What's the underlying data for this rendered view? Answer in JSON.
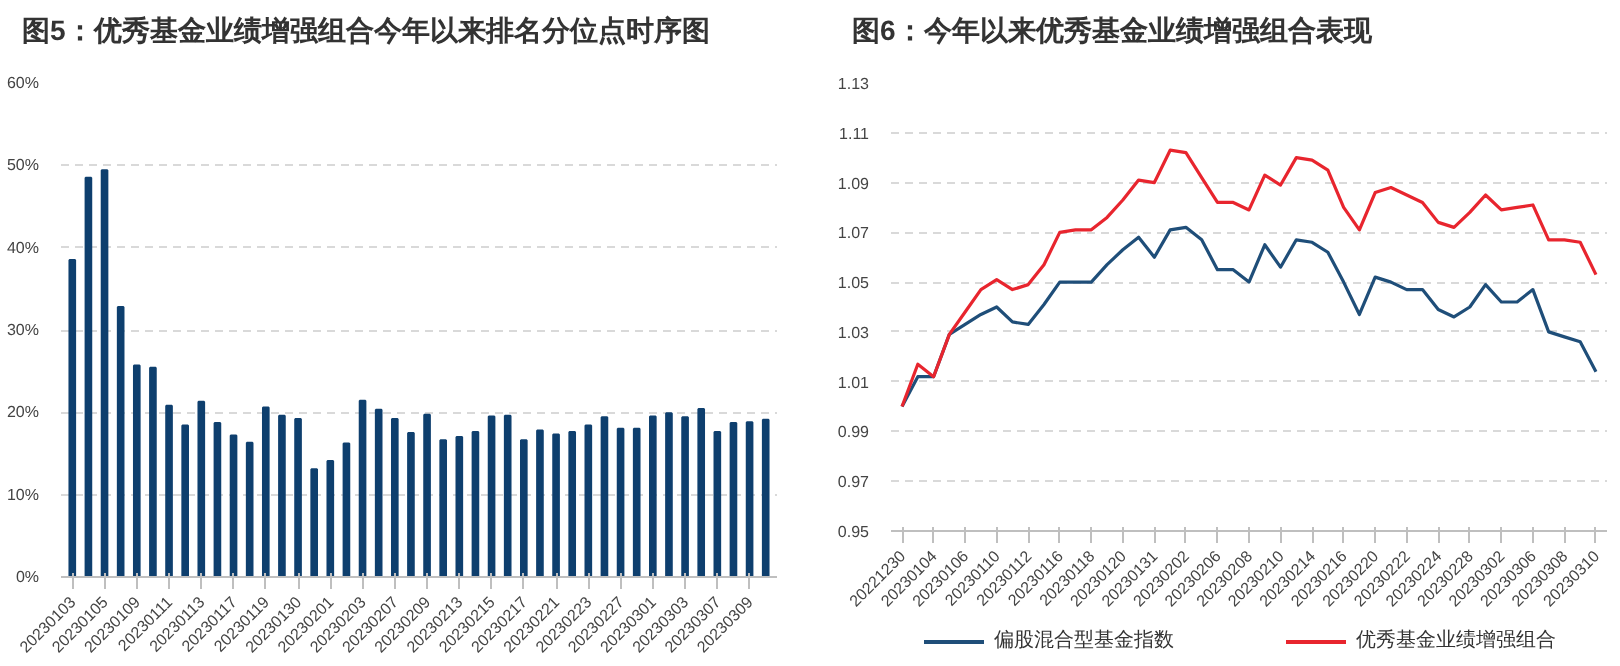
{
  "chart_data": [
    {
      "type": "bar",
      "title": "图5：优秀基金业绩增强组合今年以来排名分位点时序图",
      "categories": [
        "20230103",
        null,
        "20230105",
        null,
        "20230109",
        null,
        "20230111",
        null,
        "20230113",
        null,
        "20230117",
        null,
        "20230119",
        null,
        "20230130",
        null,
        "20230201",
        null,
        "20230203",
        null,
        "20230207",
        null,
        "20230209",
        null,
        "20230213",
        null,
        "20230215",
        null,
        "20230217",
        null,
        "20230221",
        null,
        "20230223",
        null,
        "20230227",
        null,
        "20230301",
        null,
        "20230303",
        null,
        "20230307",
        null,
        "20230309",
        null
      ],
      "values": [
        38.5,
        48.5,
        49.4,
        32.8,
        25.7,
        25.4,
        20.8,
        18.4,
        21.3,
        18.7,
        17.2,
        16.3,
        20.6,
        19.6,
        19.2,
        13.1,
        14.1,
        16.2,
        21.4,
        20.3,
        19.2,
        17.5,
        19.7,
        16.6,
        17.0,
        17.6,
        19.5,
        19.6,
        16.6,
        17.8,
        17.3,
        17.6,
        18.4,
        19.4,
        18.0,
        18.0,
        19.5,
        19.9,
        19.4,
        20.4,
        17.6,
        18.7,
        18.8,
        19.1
      ],
      "color": "#0e3f6e",
      "ylim": [
        0,
        60
      ],
      "yticks": [
        {
          "value": 0,
          "label": "0%"
        },
        {
          "value": 10,
          "label": "10%"
        },
        {
          "value": 20,
          "label": "20%"
        },
        {
          "value": 30,
          "label": "30%"
        },
        {
          "value": 40,
          "label": "40%"
        },
        {
          "value": 50,
          "label": "50%"
        },
        {
          "value": 60,
          "label": "60%"
        }
      ],
      "grid": "y"
    },
    {
      "type": "line",
      "title": "图6：今年以来优秀基金业绩增强组合表现",
      "categories": [
        "20221230",
        null,
        "20230104",
        null,
        "20230106",
        null,
        "20230110",
        null,
        "20230112",
        null,
        "20230116",
        null,
        "20230118",
        null,
        "20230120",
        null,
        "20230131",
        null,
        "20230202",
        null,
        "20230206",
        null,
        "20230208",
        null,
        "20230210",
        null,
        "20230214",
        null,
        "20230216",
        null,
        "20230220",
        null,
        "20230222",
        null,
        "20230224",
        null,
        "20230228",
        null,
        "20230302",
        null,
        "20230306",
        null,
        "20230308",
        null,
        "20230310"
      ],
      "series": [
        {
          "name": "偏股混合型基金指数",
          "color": "#1f4e79",
          "values": [
            1.0,
            1.012,
            1.012,
            1.029,
            1.033,
            1.037,
            1.04,
            1.034,
            1.033,
            1.041,
            1.05,
            1.05,
            1.05,
            1.057,
            1.063,
            1.068,
            1.06,
            1.071,
            1.072,
            1.067,
            1.055,
            1.055,
            1.05,
            1.065,
            1.056,
            1.067,
            1.066,
            1.062,
            1.05,
            1.037,
            1.052,
            1.05,
            1.047,
            1.047,
            1.039,
            1.036,
            1.04,
            1.049,
            1.042,
            1.042,
            1.047,
            1.03,
            1.028,
            1.026,
            1.014
          ]
        },
        {
          "name": "优秀基金业绩增强组合",
          "color": "#e8252e",
          "values": [
            1.0,
            1.017,
            1.012,
            1.029,
            1.038,
            1.047,
            1.051,
            1.047,
            1.049,
            1.057,
            1.07,
            1.071,
            1.071,
            1.076,
            1.083,
            1.091,
            1.09,
            1.103,
            1.102,
            1.092,
            1.082,
            1.082,
            1.079,
            1.093,
            1.089,
            1.1,
            1.099,
            1.095,
            1.08,
            1.071,
            1.086,
            1.088,
            1.085,
            1.082,
            1.074,
            1.072,
            1.078,
            1.085,
            1.079,
            1.08,
            1.081,
            1.067,
            1.067,
            1.066,
            1.053
          ]
        }
      ],
      "ylim": [
        0.95,
        1.13
      ],
      "yticks": [
        {
          "value": 0.95,
          "label": "0.95"
        },
        {
          "value": 0.97,
          "label": "0.97"
        },
        {
          "value": 0.99,
          "label": "0.99"
        },
        {
          "value": 1.01,
          "label": "1.01"
        },
        {
          "value": 1.03,
          "label": "1.03"
        },
        {
          "value": 1.05,
          "label": "1.05"
        },
        {
          "value": 1.07,
          "label": "1.07"
        },
        {
          "value": 1.09,
          "label": "1.09"
        },
        {
          "value": 1.11,
          "label": "1.11"
        },
        {
          "value": 1.13,
          "label": "1.13"
        }
      ],
      "grid": "y",
      "legend": "bottom",
      "line_style": "solid",
      "marker": "none"
    }
  ]
}
